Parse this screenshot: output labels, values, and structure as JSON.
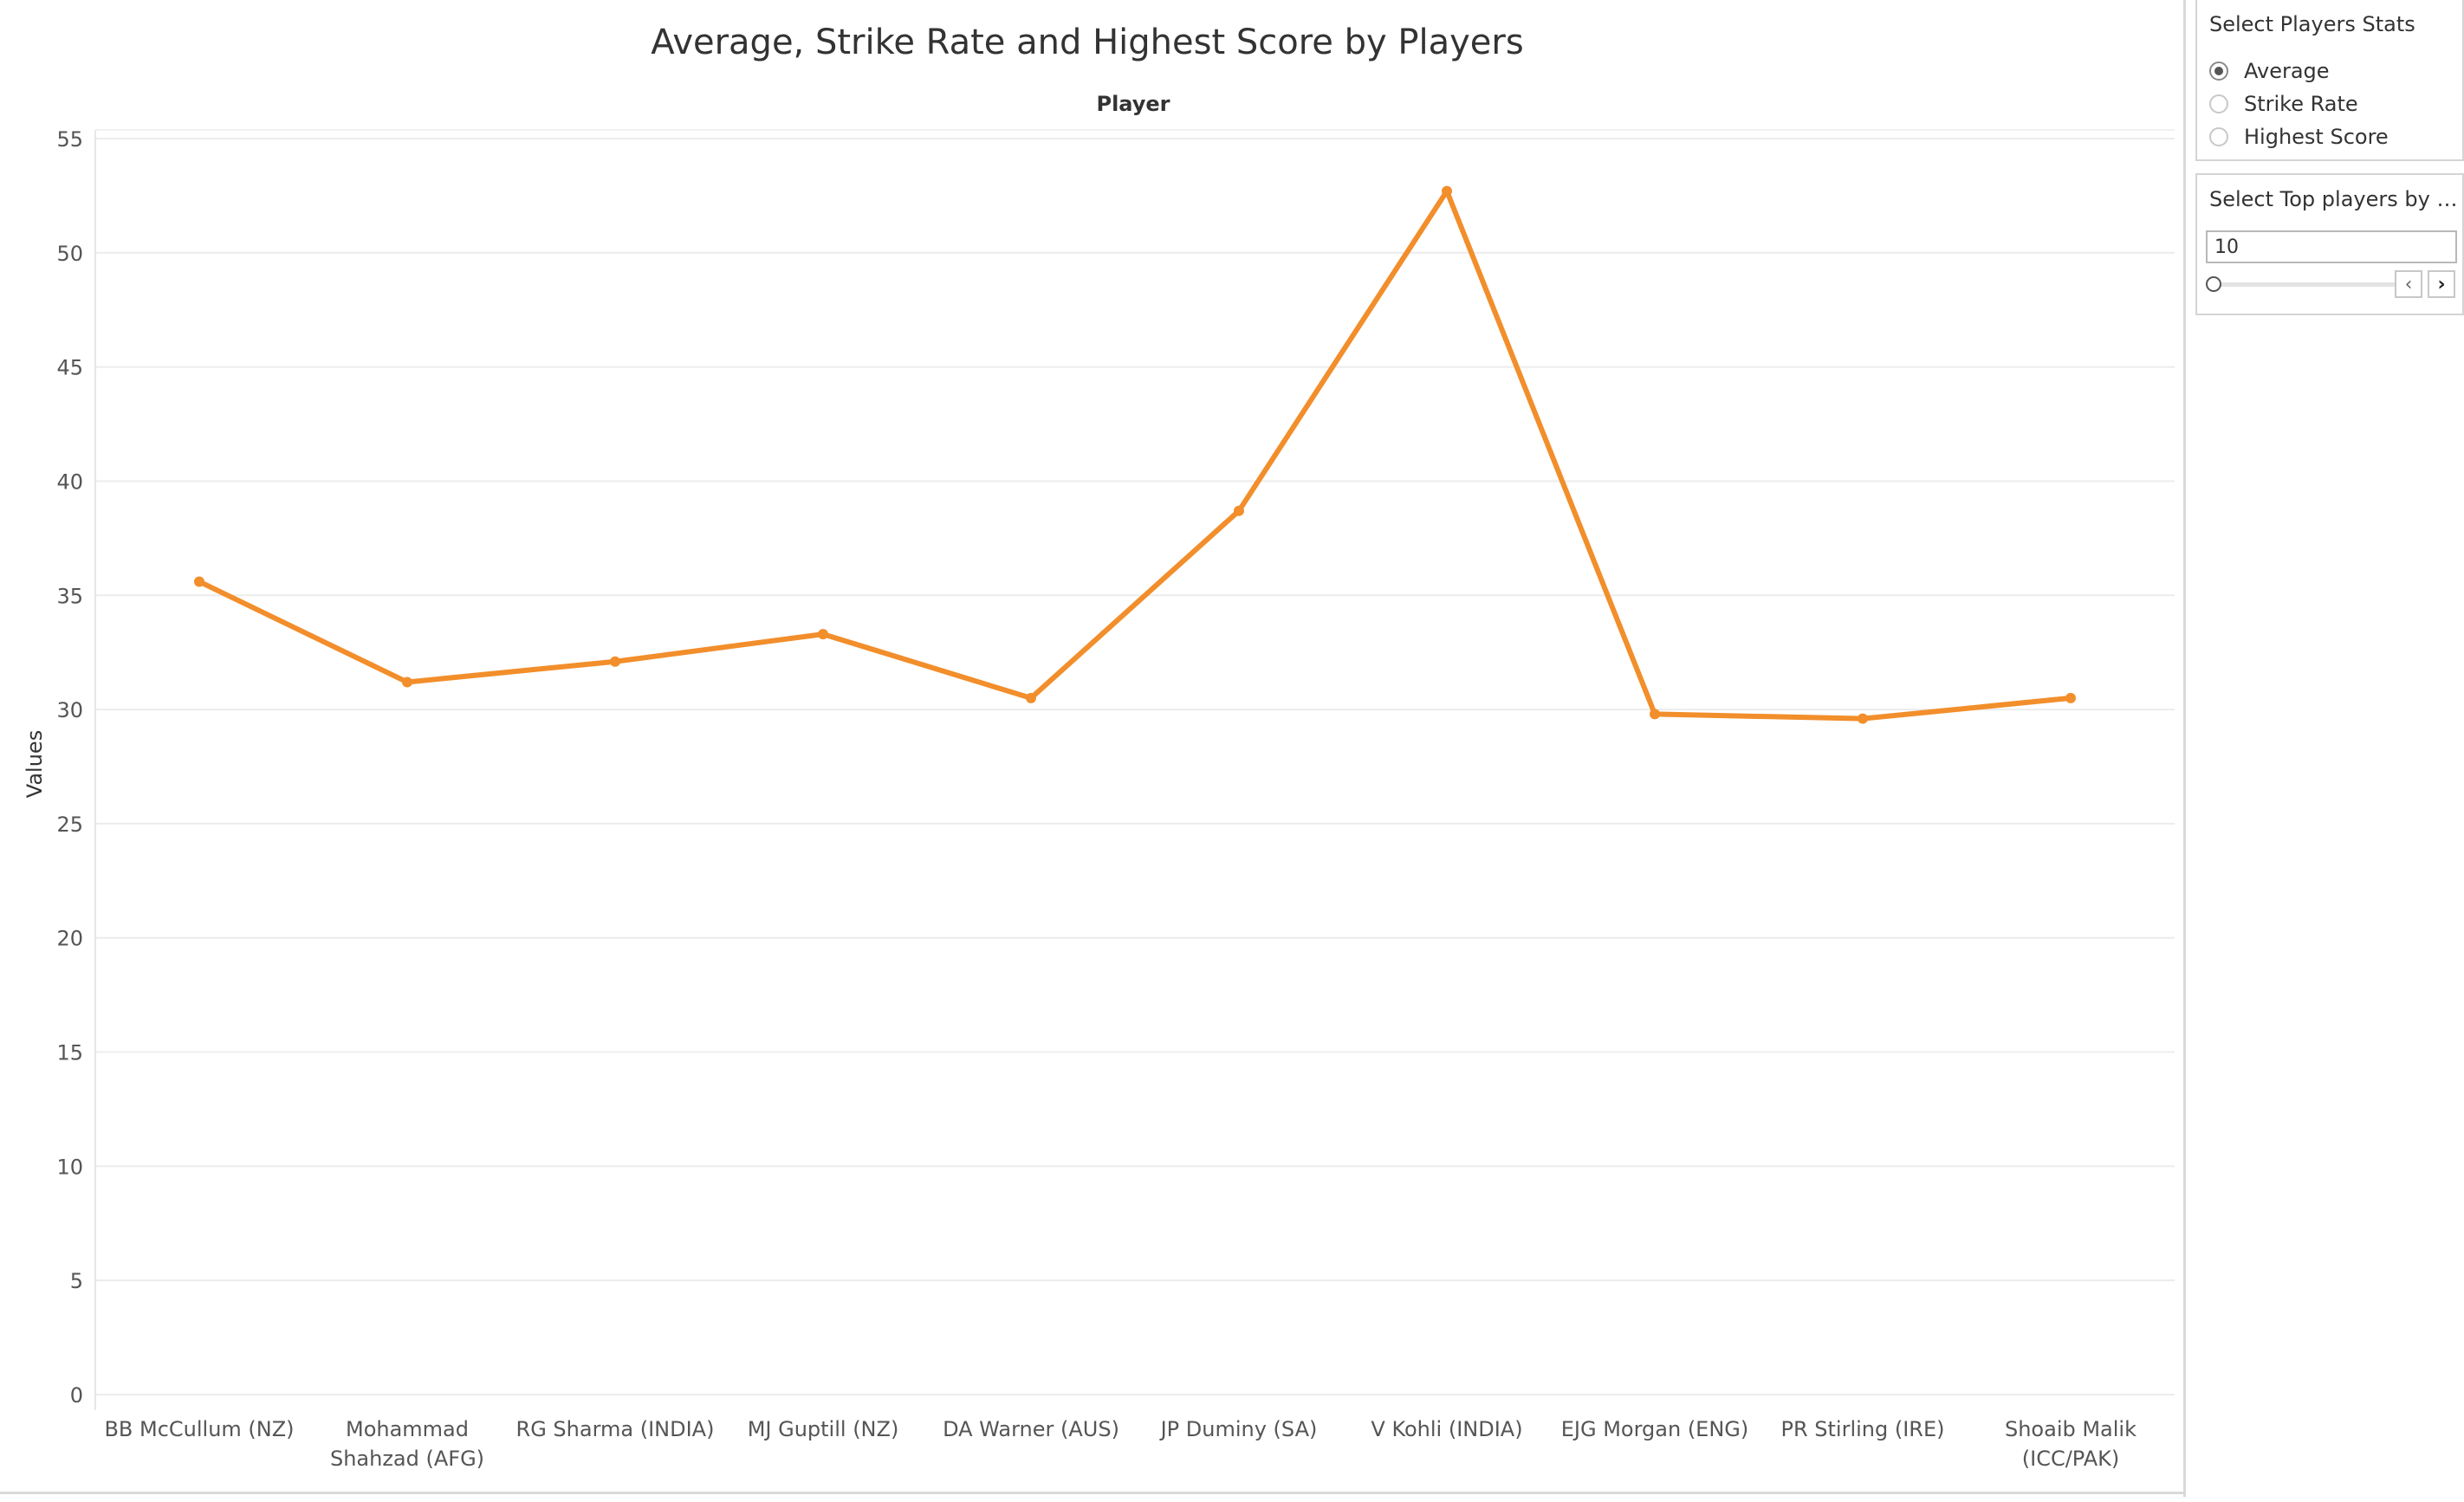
{
  "chart_data": {
    "type": "line",
    "title": "Average, Strike Rate and Highest Score by Players",
    "column_header": "Player",
    "ylabel": "Values",
    "ylim": [
      0,
      55
    ],
    "yticks": [
      0,
      5,
      10,
      15,
      20,
      25,
      30,
      35,
      40,
      45,
      50,
      55
    ],
    "categories": [
      [
        "BB McCullum (NZ)"
      ],
      [
        "Mohammad",
        "Shahzad (AFG)"
      ],
      [
        "RG Sharma (INDIA)"
      ],
      [
        "MJ Guptill (NZ)"
      ],
      [
        "DA Warner (AUS)"
      ],
      [
        "JP Duminy (SA)"
      ],
      [
        "V Kohli (INDIA)"
      ],
      [
        "EJG Morgan (ENG)"
      ],
      [
        "PR Stirling (IRE)"
      ],
      [
        "Shoaib Malik",
        "(ICC/PAK)"
      ]
    ],
    "values": [
      35.6,
      31.2,
      32.1,
      33.3,
      30.5,
      38.7,
      52.7,
      29.8,
      29.6,
      30.5
    ],
    "line_color": "#f28e2b",
    "grid": true
  },
  "filters": {
    "stats": {
      "title": "Select Players Stats",
      "options": [
        "Average",
        "Strike Rate",
        "Highest Score"
      ],
      "selected": "Average"
    },
    "top_players": {
      "title": "Select Top players by m...",
      "value": "10",
      "prev_icon": "chevron-left-icon",
      "next_icon": "chevron-right-icon"
    }
  }
}
